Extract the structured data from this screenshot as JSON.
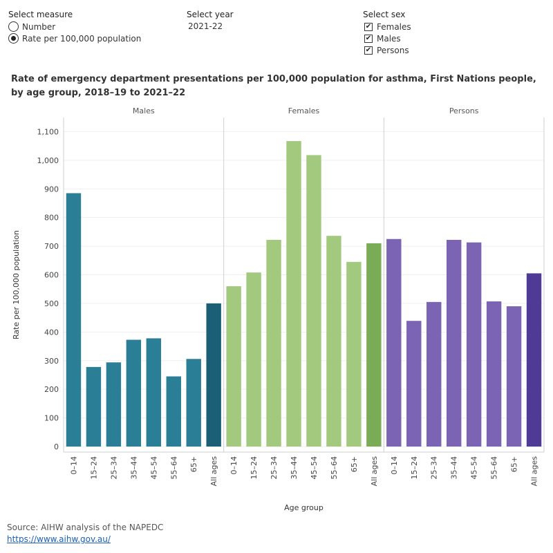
{
  "controls": {
    "measure": {
      "title": "Select measure",
      "options": [
        {
          "label": "Number",
          "selected": false
        },
        {
          "label": "Rate per 100,000 population",
          "selected": true
        }
      ]
    },
    "year": {
      "title": "Select year",
      "value": "2021-22"
    },
    "sex": {
      "title": "Select sex",
      "check_glyph": "✔",
      "options": [
        {
          "label": "Females",
          "checked": true
        },
        {
          "label": "Males",
          "checked": true
        },
        {
          "label": "Persons",
          "checked": true
        }
      ]
    }
  },
  "chart_data": {
    "type": "bar",
    "title": "Rate of emergency department presentations per 100,000 population for asthma, First Nations people, by age group, 2018–19 to 2021–22",
    "xlabel": "Age group",
    "ylabel": "Rate per 100,000 population",
    "ylim": [
      0,
      1130
    ],
    "yticks": [
      0,
      100,
      200,
      300,
      400,
      500,
      600,
      700,
      800,
      900,
      1000,
      1100
    ],
    "ytick_labels": [
      "0",
      "100",
      "200",
      "300",
      "400",
      "500",
      "600",
      "700",
      "800",
      "900",
      "1,000",
      "1,100"
    ],
    "grid": true,
    "categories": [
      "0–14",
      "15–24",
      "25–34",
      "35–44",
      "45–54",
      "55–64",
      "65+",
      "All ages"
    ],
    "panels": [
      {
        "name": "Males",
        "color": "#2a7f97",
        "all_ages_color": "#1a5f76",
        "values": [
          885,
          278,
          294,
          373,
          378,
          245,
          306,
          500
        ]
      },
      {
        "name": "Females",
        "color": "#a3c97f",
        "all_ages_color": "#7aac57",
        "values": [
          560,
          608,
          722,
          1067,
          1018,
          736,
          645,
          710
        ]
      },
      {
        "name": "Persons",
        "color": "#7b64b4",
        "all_ages_color": "#4f3a96",
        "values": [
          725,
          439,
          505,
          722,
          713,
          507,
          490,
          605
        ]
      }
    ]
  },
  "source": {
    "text": "Source: AIHW analysis of the NAPEDC",
    "link": "https://www.aihw.gov.au/"
  }
}
